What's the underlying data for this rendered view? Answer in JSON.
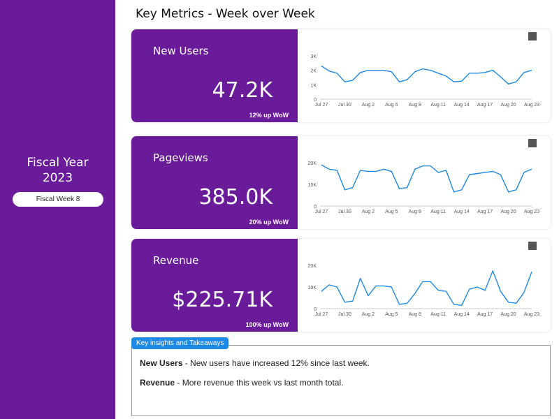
{
  "sidebar": {
    "fiscal_year_line1": "Fiscal Year",
    "fiscal_year_line2": "2023",
    "fiscal_week": "Fiscal Week 8"
  },
  "header": {
    "title": "Key Metrics - Week over Week"
  },
  "cards": [
    {
      "name": "New Users",
      "value": "47.2K",
      "change": "12% up WoW"
    },
    {
      "name": "Pageviews",
      "value": "385.0K",
      "change": "20% up WoW"
    },
    {
      "name": "Revenue",
      "value": "$225.71K",
      "change": "100% up WoW"
    }
  ],
  "insights": {
    "tab_label": "Key insights and Takeaways",
    "items": [
      {
        "label": "New Users",
        "text": " - New users have increased 12% since last week."
      },
      {
        "label": "Revenue",
        "text": " - More revenue this week vs last month total."
      }
    ]
  },
  "colors": {
    "primary": "#6a1b9a",
    "line": "#1e88e5",
    "tab": "#1e88e5",
    "swatch": "#555555"
  },
  "chart_data": [
    {
      "type": "line",
      "x_ticks": [
        "Jul 27",
        "Jul 30",
        "Aug 2",
        "Aug 5",
        "Aug 8",
        "Aug 11",
        "Aug 14",
        "Aug 17",
        "Aug 20",
        "Aug 23"
      ],
      "y_ticks": [
        "0",
        "1K",
        "2K",
        "3K"
      ],
      "ylim": [
        0,
        3000
      ],
      "values": [
        2300,
        1950,
        1800,
        1200,
        1300,
        1850,
        2000,
        2000,
        2000,
        1900,
        1200,
        1350,
        1900,
        2100,
        2000,
        1800,
        1600,
        1200,
        1250,
        1800,
        1800,
        1850,
        2000,
        1550,
        1050,
        1200,
        1850,
        2000
      ]
    },
    {
      "type": "line",
      "x_ticks": [
        "Jul 27",
        "Jul 30",
        "Aug 2",
        "Aug 5",
        "Aug 8",
        "Aug 11",
        "Aug 14",
        "Aug 17",
        "Aug 20",
        "Aug 23"
      ],
      "y_ticks": [
        "0",
        "10K",
        "20K"
      ],
      "ylim": [
        0,
        20000
      ],
      "values": [
        19000,
        17000,
        16500,
        7500,
        8500,
        16500,
        16000,
        16000,
        17000,
        16000,
        8000,
        8500,
        17000,
        18500,
        18500,
        15500,
        16500,
        6500,
        7500,
        14500,
        15000,
        15500,
        16000,
        14500,
        6500,
        7500,
        15500,
        17000
      ]
    },
    {
      "type": "line",
      "x_ticks": [
        "Jul 27",
        "Jul 30",
        "Aug 2",
        "Aug 5",
        "Aug 8",
        "Aug 11",
        "Aug 14",
        "Aug 17",
        "Aug 20",
        "Aug 23"
      ],
      "y_ticks": [
        "0",
        "10K",
        "20K"
      ],
      "ylim": [
        0,
        20000
      ],
      "values": [
        8000,
        11000,
        10000,
        3000,
        3500,
        14000,
        6000,
        10500,
        10500,
        10000,
        2000,
        2500,
        7000,
        12500,
        12500,
        8500,
        8000,
        2000,
        1500,
        9000,
        10000,
        8500,
        17500,
        8000,
        3000,
        2500,
        7500,
        17000
      ]
    }
  ]
}
